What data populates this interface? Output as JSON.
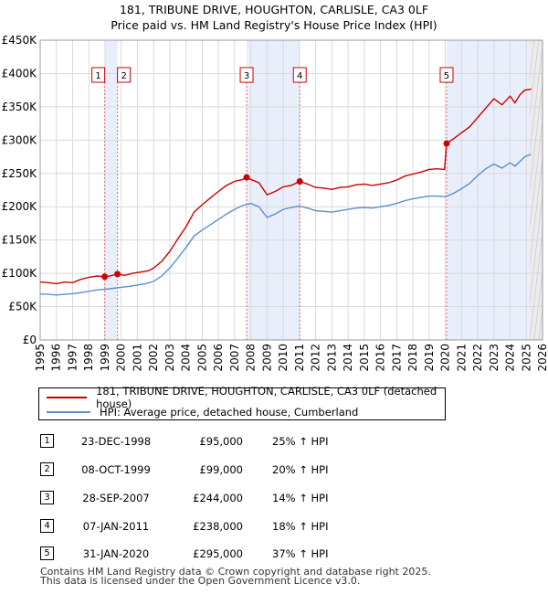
{
  "chart_data": {
    "type": "line",
    "title": "181, TRIBUNE DRIVE, HOUGHTON, CARLISLE, CA3 0LF",
    "subtitle": "Price paid vs. HM Land Registry's House Price Index (HPI)",
    "xlim": [
      1995,
      2026
    ],
    "ylim": [
      0,
      450000
    ],
    "x_ticks": [
      "1995",
      "1996",
      "1997",
      "1998",
      "1999",
      "2000",
      "2001",
      "2002",
      "2003",
      "2004",
      "2005",
      "2006",
      "2007",
      "2008",
      "2009",
      "2010",
      "2011",
      "2012",
      "2013",
      "2014",
      "2015",
      "2016",
      "2017",
      "2018",
      "2019",
      "2020",
      "2021",
      "2022",
      "2023",
      "2024",
      "2025",
      "2026"
    ],
    "y_ticks": [
      {
        "value": 0,
        "label": "£0"
      },
      {
        "value": 50000,
        "label": "£50K"
      },
      {
        "value": 100000,
        "label": "£100K"
      },
      {
        "value": 150000,
        "label": "£150K"
      },
      {
        "value": 200000,
        "label": "£200K"
      },
      {
        "value": 250000,
        "label": "£250K"
      },
      {
        "value": 300000,
        "label": "£300K"
      },
      {
        "value": 350000,
        "label": "£350K"
      },
      {
        "value": 400000,
        "label": "£400K"
      },
      {
        "value": 450000,
        "label": "£450K"
      }
    ],
    "shaded_ranges": [
      [
        1998.98,
        1999.77
      ],
      [
        2007.74,
        2011.02
      ],
      [
        2020.08,
        2025.2
      ]
    ],
    "forecast_from": 2025.2,
    "series": [
      {
        "name": "181, TRIBUNE DRIVE, HOUGHTON, CARLISLE, CA3 0LF (detached house)",
        "color": "#cc0000",
        "points": [
          [
            1995.0,
            87000
          ],
          [
            1995.5,
            86000
          ],
          [
            1996.0,
            84500
          ],
          [
            1996.5,
            87000
          ],
          [
            1997.0,
            86000
          ],
          [
            1997.5,
            91000
          ],
          [
            1998.0,
            94000
          ],
          [
            1998.5,
            96000
          ],
          [
            1998.98,
            95000
          ],
          [
            1999.3,
            96000
          ],
          [
            1999.77,
            99000
          ],
          [
            2000.2,
            97000
          ],
          [
            2000.7,
            100000
          ],
          [
            2001.2,
            102000
          ],
          [
            2001.7,
            104000
          ],
          [
            2002.0,
            108000
          ],
          [
            2002.5,
            118000
          ],
          [
            2003.0,
            133000
          ],
          [
            2003.5,
            152000
          ],
          [
            2004.0,
            170000
          ],
          [
            2004.5,
            192000
          ],
          [
            2005.0,
            203000
          ],
          [
            2005.5,
            213000
          ],
          [
            2006.0,
            223000
          ],
          [
            2006.5,
            232000
          ],
          [
            2007.0,
            238000
          ],
          [
            2007.5,
            241000
          ],
          [
            2007.74,
            244000
          ],
          [
            2008.0,
            241000
          ],
          [
            2008.5,
            236000
          ],
          [
            2009.0,
            218000
          ],
          [
            2009.5,
            223000
          ],
          [
            2010.0,
            230000
          ],
          [
            2010.5,
            232000
          ],
          [
            2011.02,
            238000
          ],
          [
            2011.5,
            234000
          ],
          [
            2012.0,
            229000
          ],
          [
            2012.5,
            228000
          ],
          [
            2013.0,
            226000
          ],
          [
            2013.5,
            229000
          ],
          [
            2014.0,
            230000
          ],
          [
            2014.5,
            233000
          ],
          [
            2015.0,
            234000
          ],
          [
            2015.5,
            232000
          ],
          [
            2016.0,
            234000
          ],
          [
            2016.5,
            236000
          ],
          [
            2017.0,
            240000
          ],
          [
            2017.5,
            246000
          ],
          [
            2018.0,
            249000
          ],
          [
            2018.5,
            252000
          ],
          [
            2019.0,
            256000
          ],
          [
            2019.5,
            257000
          ],
          [
            2019.95,
            256000
          ],
          [
            2020.08,
            295000
          ],
          [
            2020.5,
            302000
          ],
          [
            2021.0,
            311000
          ],
          [
            2021.5,
            320000
          ],
          [
            2022.0,
            334000
          ],
          [
            2022.5,
            348000
          ],
          [
            2023.0,
            362000
          ],
          [
            2023.5,
            353000
          ],
          [
            2024.0,
            366000
          ],
          [
            2024.3,
            356000
          ],
          [
            2024.6,
            368000
          ],
          [
            2024.9,
            375000
          ],
          [
            2025.2,
            376000
          ],
          [
            2025.3,
            377000
          ]
        ]
      },
      {
        "name": "HPI: Average price, detached house, Cumberland",
        "color": "#5b8fd0",
        "points": [
          [
            1995.0,
            69000
          ],
          [
            1995.5,
            68500
          ],
          [
            1996.0,
            67500
          ],
          [
            1996.5,
            68500
          ],
          [
            1997.0,
            69500
          ],
          [
            1997.5,
            71000
          ],
          [
            1998.0,
            73000
          ],
          [
            1998.5,
            75000
          ],
          [
            1999.0,
            76000
          ],
          [
            1999.5,
            77500
          ],
          [
            2000.0,
            79000
          ],
          [
            2000.5,
            80500
          ],
          [
            2001.0,
            82500
          ],
          [
            2001.5,
            84500
          ],
          [
            2002.0,
            88000
          ],
          [
            2002.5,
            96000
          ],
          [
            2003.0,
            108000
          ],
          [
            2003.5,
            123000
          ],
          [
            2004.0,
            139000
          ],
          [
            2004.5,
            156000
          ],
          [
            2005.0,
            165000
          ],
          [
            2005.5,
            173000
          ],
          [
            2006.0,
            181000
          ],
          [
            2006.5,
            189000
          ],
          [
            2007.0,
            196000
          ],
          [
            2007.5,
            202000
          ],
          [
            2008.0,
            205000
          ],
          [
            2008.5,
            200000
          ],
          [
            2009.0,
            184000
          ],
          [
            2009.5,
            189000
          ],
          [
            2010.0,
            196000
          ],
          [
            2010.5,
            199000
          ],
          [
            2011.0,
            201000
          ],
          [
            2011.5,
            198000
          ],
          [
            2012.0,
            194000
          ],
          [
            2012.5,
            193000
          ],
          [
            2013.0,
            192000
          ],
          [
            2013.5,
            194000
          ],
          [
            2014.0,
            196000
          ],
          [
            2014.5,
            198000
          ],
          [
            2015.0,
            199000
          ],
          [
            2015.5,
            198000
          ],
          [
            2016.0,
            200000
          ],
          [
            2016.5,
            202000
          ],
          [
            2017.0,
            205000
          ],
          [
            2017.5,
            209000
          ],
          [
            2018.0,
            212000
          ],
          [
            2018.5,
            214000
          ],
          [
            2019.0,
            216000
          ],
          [
            2019.5,
            216000
          ],
          [
            2020.0,
            215000
          ],
          [
            2020.5,
            220000
          ],
          [
            2021.0,
            227000
          ],
          [
            2021.5,
            235000
          ],
          [
            2022.0,
            247000
          ],
          [
            2022.5,
            257000
          ],
          [
            2023.0,
            264000
          ],
          [
            2023.5,
            258000
          ],
          [
            2024.0,
            266000
          ],
          [
            2024.3,
            261000
          ],
          [
            2024.6,
            268000
          ],
          [
            2024.9,
            275000
          ],
          [
            2025.2,
            278000
          ],
          [
            2025.3,
            278500
          ]
        ]
      }
    ],
    "sales": [
      {
        "label": "1",
        "x": 1998.98,
        "value": 95000
      },
      {
        "label": "2",
        "x": 1999.77,
        "value": 99000
      },
      {
        "label": "3",
        "x": 2007.74,
        "value": 244000
      },
      {
        "label": "4",
        "x": 2011.02,
        "value": 238000
      },
      {
        "label": "5",
        "x": 2020.08,
        "value": 295000
      }
    ],
    "legend": [
      {
        "label": "181, TRIBUNE DRIVE, HOUGHTON, CARLISLE, CA3 0LF (detached house)",
        "color": "#cc0000"
      },
      {
        "label": "HPI: Average price, detached house, Cumberland",
        "color": "#5b8fd0"
      }
    ]
  },
  "table": [
    {
      "num": "1",
      "date": "23-DEC-1998",
      "price": "£95,000",
      "hpi": "25% ↑ HPI"
    },
    {
      "num": "2",
      "date": "08-OCT-1999",
      "price": "£99,000",
      "hpi": "20% ↑ HPI"
    },
    {
      "num": "3",
      "date": "28-SEP-2007",
      "price": "£244,000",
      "hpi": "14% ↑ HPI"
    },
    {
      "num": "4",
      "date": "07-JAN-2011",
      "price": "£238,000",
      "hpi": "18% ↑ HPI"
    },
    {
      "num": "5",
      "date": "31-JAN-2020",
      "price": "£295,000",
      "hpi": "37% ↑ HPI"
    }
  ],
  "footer": {
    "line1": "Contains HM Land Registry data © Crown copyright and database right 2025.",
    "line2": "This data is licensed under the Open Government Licence v3.0."
  }
}
